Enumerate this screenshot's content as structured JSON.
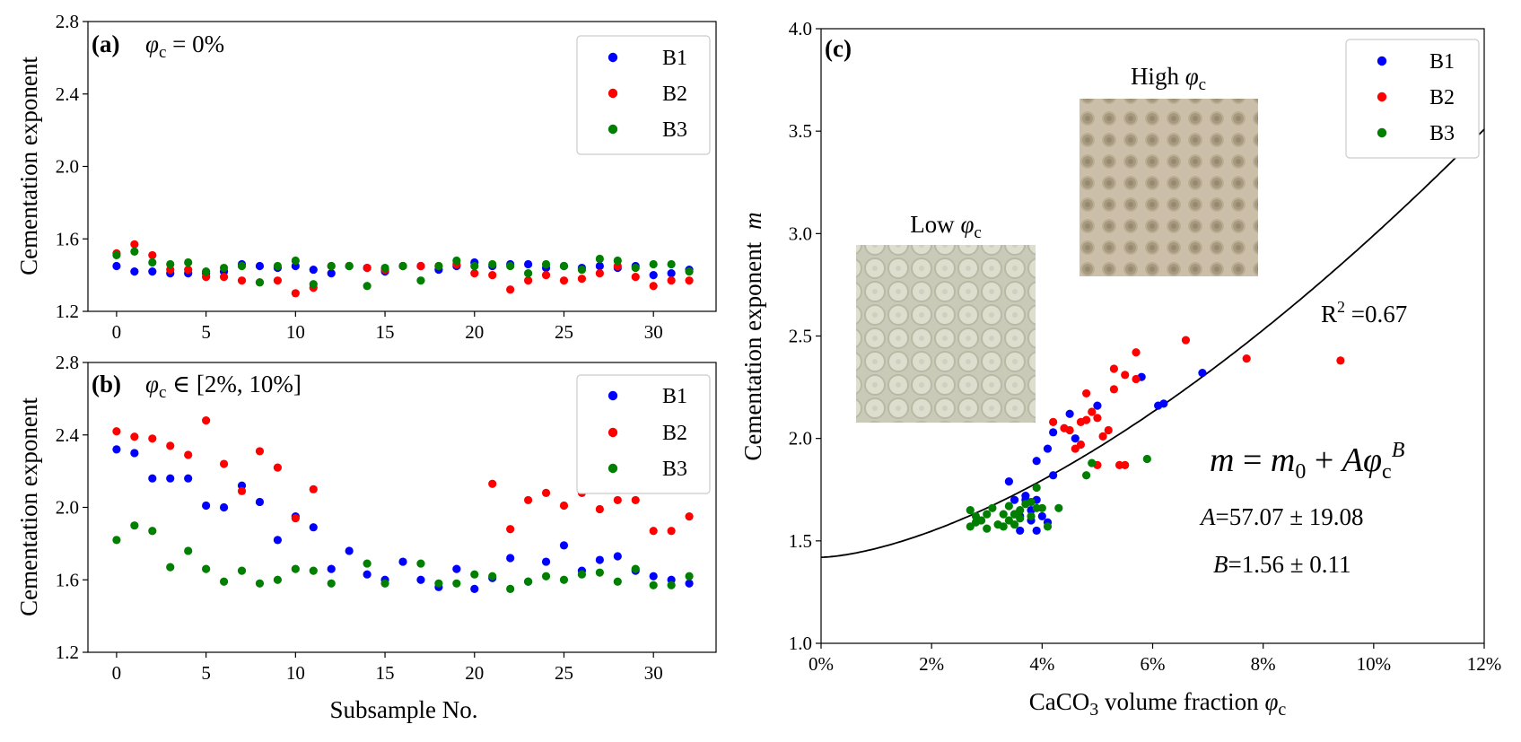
{
  "colors": {
    "B1": "#0000ff",
    "B2": "#ff0000",
    "B3": "#007f00",
    "curve": "#000000"
  },
  "chart_data": [
    {
      "type": "scatter",
      "panel_label": "(a)",
      "note": "φ",
      "note_sub": "c",
      "note_rest": " = 0%",
      "xlabel": "",
      "ylabel": "Cementation exponent",
      "xlim": [
        -1.6,
        33.5
      ],
      "ylim": [
        1.2,
        2.8
      ],
      "xticks": [
        0,
        5,
        10,
        15,
        20,
        25,
        30
      ],
      "yticks": [
        "1.2",
        "1.6",
        "2.0",
        "2.4",
        "2.8"
      ],
      "ytick_values": [
        1.2,
        1.6,
        2.0,
        2.4,
        2.8
      ],
      "legend_position": "upper-right",
      "x": [
        0,
        1,
        2,
        3,
        4,
        5,
        6,
        7,
        8,
        9,
        10,
        11,
        12,
        13,
        14,
        15,
        16,
        17,
        18,
        19,
        20,
        21,
        22,
        23,
        24,
        25,
        26,
        27,
        28,
        29,
        30,
        31,
        32
      ],
      "series": [
        {
          "name": "B1",
          "values": [
            1.45,
            1.42,
            1.42,
            1.41,
            1.41,
            1.41,
            1.42,
            1.46,
            1.45,
            1.44,
            1.45,
            1.43,
            1.41,
            1.45,
            1.44,
            1.42,
            1.45,
            1.45,
            1.43,
            1.45,
            1.47,
            1.45,
            1.46,
            1.46,
            1.44,
            1.45,
            1.44,
            1.45,
            1.44,
            1.45,
            1.4,
            1.41,
            1.43
          ]
        },
        {
          "name": "B2",
          "values": [
            1.52,
            1.57,
            1.51,
            1.43,
            1.43,
            1.39,
            1.39,
            1.37,
            1.36,
            1.37,
            1.3,
            1.33,
            1.45,
            1.45,
            1.44,
            1.43,
            1.45,
            1.45,
            1.45,
            1.46,
            1.41,
            1.4,
            1.32,
            1.37,
            1.4,
            1.37,
            1.38,
            1.41,
            1.45,
            1.39,
            1.34,
            1.37,
            1.37
          ]
        },
        {
          "name": "B3",
          "values": [
            1.51,
            1.53,
            1.47,
            1.46,
            1.47,
            1.42,
            1.44,
            1.45,
            1.36,
            1.45,
            1.48,
            1.35,
            1.45,
            1.45,
            1.34,
            1.44,
            1.45,
            1.37,
            1.45,
            1.48,
            1.45,
            1.46,
            1.45,
            1.41,
            1.46,
            1.45,
            1.43,
            1.49,
            1.48,
            1.44,
            1.46,
            1.46,
            1.42
          ]
        }
      ]
    },
    {
      "type": "scatter",
      "panel_label": "(b)",
      "note": "φ",
      "note_sub": "c",
      "note_rest": " ∈ [2%, 10%]",
      "xlabel": "Subsample No.",
      "ylabel": "Cementation exponent",
      "xlim": [
        -1.6,
        33.5
      ],
      "ylim": [
        1.2,
        2.8
      ],
      "xticks": [
        0,
        5,
        10,
        15,
        20,
        25,
        30
      ],
      "yticks": [
        "1.2",
        "1.6",
        "2.0",
        "2.4",
        "2.8"
      ],
      "ytick_values": [
        1.2,
        1.6,
        2.0,
        2.4,
        2.8
      ],
      "legend_position": "upper-right",
      "x": [
        0,
        1,
        2,
        3,
        4,
        5,
        6,
        7,
        8,
        9,
        10,
        11,
        12,
        13,
        14,
        15,
        16,
        17,
        18,
        19,
        20,
        21,
        22,
        23,
        24,
        25,
        26,
        27,
        28,
        29,
        30,
        31,
        32
      ],
      "series": [
        {
          "name": "B1",
          "values": [
            2.32,
            2.3,
            2.16,
            2.16,
            2.16,
            2.01,
            2.0,
            2.12,
            2.03,
            1.82,
            1.95,
            1.89,
            1.66,
            1.76,
            1.63,
            1.6,
            1.7,
            1.6,
            1.56,
            1.66,
            1.55,
            1.61,
            1.72,
            1.59,
            1.7,
            1.79,
            1.65,
            1.71,
            1.73,
            1.65,
            1.62,
            1.6,
            1.58
          ]
        },
        {
          "name": "B2",
          "values": [
            2.42,
            2.39,
            2.38,
            2.34,
            2.29,
            2.48,
            2.24,
            2.09,
            2.31,
            2.22,
            1.94,
            2.1,
            null,
            null,
            null,
            null,
            null,
            null,
            null,
            null,
            null,
            2.13,
            1.88,
            2.04,
            2.08,
            2.01,
            2.08,
            1.99,
            2.04,
            2.04,
            1.87,
            1.87,
            1.95
          ]
        },
        {
          "name": "B3",
          "values": [
            1.82,
            1.9,
            1.87,
            1.67,
            1.76,
            1.66,
            1.59,
            1.65,
            1.58,
            1.6,
            1.66,
            1.65,
            1.58,
            null,
            1.69,
            1.58,
            null,
            1.69,
            1.58,
            1.58,
            1.63,
            1.62,
            1.55,
            1.59,
            1.62,
            1.6,
            1.63,
            1.64,
            1.59,
            1.66,
            1.57,
            1.57,
            1.62
          ]
        }
      ]
    },
    {
      "type": "scatter",
      "panel_label": "(c)",
      "xlabel_pre": "CaCO",
      "xlabel_sub": "3",
      "xlabel_post": " volume fraction ",
      "xlabel_var": "φ",
      "xlabel_var_sub": "c",
      "ylabel": "Cementation exponent",
      "ylabel_var": "m",
      "xlim": [
        0,
        12
      ],
      "ylim": [
        1.0,
        4.0
      ],
      "xticks": [
        "0%",
        "2%",
        "4%",
        "6%",
        "8%",
        "10%",
        "12%"
      ],
      "xtick_values": [
        0,
        2,
        4,
        6,
        8,
        10,
        12
      ],
      "yticks": [
        "1.0",
        "1.5",
        "2.0",
        "2.5",
        "3.0",
        "3.5",
        "4.0"
      ],
      "ytick_values": [
        1.0,
        1.5,
        2.0,
        2.5,
        3.0,
        3.5,
        4.0
      ],
      "legend_position": "upper-right",
      "series": [
        {
          "name": "B1",
          "points": [
            [
              3.4,
              1.79
            ],
            [
              3.5,
              1.7
            ],
            [
              3.5,
              1.63
            ],
            [
              3.6,
              1.55
            ],
            [
              3.6,
              1.62
            ],
            [
              3.7,
              1.7
            ],
            [
              3.7,
              1.72
            ],
            [
              3.8,
              1.65
            ],
            [
              3.8,
              1.6
            ],
            [
              3.9,
              1.89
            ],
            [
              3.9,
              1.55
            ],
            [
              3.9,
              1.7
            ],
            [
              4.0,
              1.62
            ],
            [
              4.1,
              1.59
            ],
            [
              4.2,
              1.82
            ],
            [
              4.1,
              1.95
            ],
            [
              4.2,
              2.03
            ],
            [
              4.5,
              2.12
            ],
            [
              4.6,
              2.0
            ],
            [
              5.0,
              2.16
            ],
            [
              5.8,
              2.3
            ],
            [
              6.1,
              2.16
            ],
            [
              6.2,
              2.17
            ],
            [
              6.9,
              2.32
            ]
          ]
        },
        {
          "name": "B2",
          "points": [
            [
              4.2,
              2.08
            ],
            [
              4.4,
              2.05
            ],
            [
              4.5,
              2.04
            ],
            [
              4.6,
              1.95
            ],
            [
              4.7,
              1.97
            ],
            [
              4.7,
              2.08
            ],
            [
              4.8,
              2.09
            ],
            [
              4.8,
              2.22
            ],
            [
              4.9,
              2.13
            ],
            [
              5.0,
              2.1
            ],
            [
              5.0,
              1.87
            ],
            [
              5.1,
              2.01
            ],
            [
              5.2,
              2.04
            ],
            [
              5.3,
              2.34
            ],
            [
              5.3,
              2.24
            ],
            [
              5.4,
              1.87
            ],
            [
              5.5,
              2.31
            ],
            [
              5.5,
              1.87
            ],
            [
              5.7,
              2.29
            ],
            [
              5.7,
              2.42
            ],
            [
              6.6,
              2.48
            ],
            [
              7.7,
              2.39
            ],
            [
              9.4,
              2.38
            ]
          ]
        },
        {
          "name": "B3",
          "points": [
            [
              2.7,
              1.65
            ],
            [
              2.7,
              1.57
            ],
            [
              2.8,
              1.62
            ],
            [
              2.8,
              1.59
            ],
            [
              2.9,
              1.6
            ],
            [
              3.0,
              1.56
            ],
            [
              3.0,
              1.63
            ],
            [
              3.1,
              1.66
            ],
            [
              3.2,
              1.58
            ],
            [
              3.3,
              1.63
            ],
            [
              3.3,
              1.57
            ],
            [
              3.4,
              1.67
            ],
            [
              3.4,
              1.6
            ],
            [
              3.5,
              1.63
            ],
            [
              3.5,
              1.58
            ],
            [
              3.6,
              1.65
            ],
            [
              3.6,
              1.61
            ],
            [
              3.7,
              1.68
            ],
            [
              3.8,
              1.69
            ],
            [
              3.8,
              1.62
            ],
            [
              3.9,
              1.66
            ],
            [
              3.9,
              1.76
            ],
            [
              4.0,
              1.66
            ],
            [
              4.1,
              1.57
            ],
            [
              4.3,
              1.66
            ],
            [
              4.8,
              1.82
            ],
            [
              4.9,
              1.88
            ],
            [
              5.9,
              1.9
            ]
          ]
        }
      ],
      "fit": {
        "m0": 1.42,
        "A": 57.07,
        "B": 1.56
      },
      "r2_label": "R",
      "r2_sup": "2",
      "r2_value": " =0.67",
      "eq": {
        "lhs": "m",
        "eq": " = ",
        "m0": "m",
        "m0_sub": "0",
        "plus": " + ",
        "A": "A",
        "phi": "φ",
        "phi_sub": "c",
        "B": "B"
      },
      "A_label": "A",
      "A_text": "=57.07 ± 19.08",
      "B_label": "B",
      "B_text": "=1.56 ± 0.11",
      "insets": [
        {
          "title": "Low ",
          "title_var": "φ",
          "title_sub": "c"
        },
        {
          "title": "High ",
          "title_var": "φ",
          "title_sub": "c"
        }
      ]
    }
  ]
}
